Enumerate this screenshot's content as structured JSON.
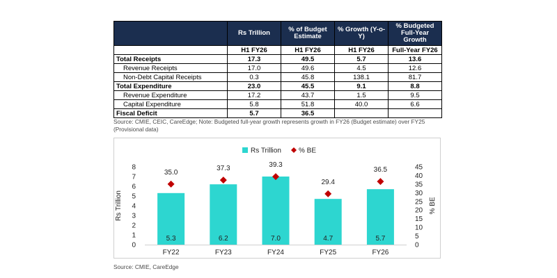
{
  "table": {
    "header_top": [
      "",
      "Rs Trillion",
      "% of Budget Estimate",
      "% Growth (Y-o-Y)",
      "% Budgeted Full-Year Growth"
    ],
    "header_sub": [
      "",
      "H1 FY26",
      "H1 FY26",
      "H1 FY26",
      "Full-Year FY26"
    ],
    "rows": [
      {
        "label": "Total Receipts",
        "values": [
          "17.3",
          "49.5",
          "5.7",
          "13.6"
        ]
      },
      {
        "label": "Revenue Receipts",
        "values": [
          "17.0",
          "49.6",
          "4.5",
          "12.6"
        ]
      },
      {
        "label": "Non-Debt Capital Receipts",
        "values": [
          "0.3",
          "45.8",
          "138.1",
          "81.7"
        ]
      },
      {
        "label": "Total Expenditure",
        "values": [
          "23.0",
          "45.5",
          "9.1",
          "8.8"
        ]
      },
      {
        "label": "Revenue Expenditure",
        "values": [
          "17.2",
          "43.7",
          "1.5",
          "9.5"
        ]
      },
      {
        "label": "Capital Expenditure",
        "values": [
          "5.8",
          "51.8",
          "40.0",
          "6.6"
        ]
      },
      {
        "label": "Fiscal Deficit",
        "values": [
          "5.7",
          "36.5",
          "",
          ""
        ]
      }
    ]
  },
  "table_note": "Source: CMIE, CEIC, CareEdge; Note: Budgeted full-year growth represents growth in FY26 (Budget estimate) over FY25 (Provisional data)",
  "chart_note": "Source: CMIE, CareEdge",
  "chart_data": {
    "type": "bar",
    "categories": [
      "FY22",
      "FY23",
      "FY24",
      "FY25",
      "FY26"
    ],
    "series": [
      {
        "name": "Rs Trillion",
        "type": "bar",
        "axis": "left",
        "values": [
          5.3,
          6.2,
          7.0,
          4.7,
          5.7
        ]
      },
      {
        "name": "% BE",
        "type": "scatter",
        "axis": "right",
        "values": [
          35.0,
          37.3,
          39.3,
          29.4,
          36.5
        ]
      }
    ],
    "ylabel": "Rs Trillion",
    "y2label": "% BE",
    "ylim": [
      0,
      8
    ],
    "y2lim": [
      0,
      45
    ],
    "yticks": [
      0,
      1,
      2,
      3,
      4,
      5,
      6,
      7,
      8
    ],
    "y2ticks": [
      0,
      5,
      10,
      15,
      20,
      25,
      30,
      35,
      40,
      45
    ],
    "legend_position": "top-center",
    "grid": false,
    "colors": {
      "bar": "#2dd6d0",
      "marker": "#c00000"
    }
  }
}
